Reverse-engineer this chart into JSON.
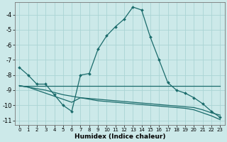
{
  "xlabel": "Humidex (Indice chaleur)",
  "xlim": [
    -0.5,
    23.5
  ],
  "ylim": [
    -11.3,
    -3.2
  ],
  "xticks": [
    0,
    1,
    2,
    3,
    4,
    5,
    6,
    7,
    8,
    9,
    10,
    11,
    12,
    13,
    14,
    15,
    16,
    17,
    18,
    19,
    20,
    21,
    22,
    23
  ],
  "yticks": [
    -11,
    -10,
    -9,
    -8,
    -7,
    -6,
    -5,
    -4
  ],
  "bg_color": "#cce9e9",
  "line_color": "#1a6b6b",
  "grid_color": "#aad4d4",
  "line1_x": [
    0,
    1,
    2,
    3,
    4,
    5,
    6,
    7,
    8,
    9,
    10,
    11,
    12,
    13,
    14,
    15,
    16,
    17,
    18,
    19,
    20,
    21,
    22,
    23
  ],
  "line1_y": [
    -7.5,
    -8.0,
    -8.6,
    -8.6,
    -9.3,
    -10.0,
    -10.4,
    -8.0,
    -7.9,
    -6.3,
    -5.4,
    -4.8,
    -4.3,
    -3.5,
    -3.7,
    -5.5,
    -7.0,
    -8.5,
    -9.0,
    -9.2,
    -9.5,
    -9.9,
    -10.4,
    -10.8
  ],
  "line2_x": [
    0,
    1,
    2,
    3,
    4,
    5,
    6,
    7,
    8,
    9,
    10,
    11,
    12,
    13,
    14,
    15,
    16,
    17,
    18,
    19,
    20,
    21,
    22,
    23
  ],
  "line2_y": [
    -8.7,
    -8.7,
    -8.7,
    -8.7,
    -8.7,
    -8.7,
    -8.7,
    -8.7,
    -8.7,
    -8.7,
    -8.7,
    -8.7,
    -8.7,
    -8.7,
    -8.7,
    -8.7,
    -8.7,
    -8.7,
    -8.7,
    -8.7,
    -8.7,
    -8.7,
    -8.7,
    -8.7
  ],
  "line3_x": [
    0,
    1,
    2,
    3,
    4,
    5,
    6,
    7,
    8,
    9,
    10,
    11,
    12,
    13,
    14,
    15,
    16,
    17,
    18,
    19,
    20,
    21,
    22,
    23
  ],
  "line3_y": [
    -8.7,
    -8.8,
    -8.9,
    -9.0,
    -9.15,
    -9.3,
    -9.4,
    -9.5,
    -9.55,
    -9.6,
    -9.65,
    -9.7,
    -9.75,
    -9.8,
    -9.85,
    -9.9,
    -9.95,
    -10.0,
    -10.05,
    -10.1,
    -10.15,
    -10.3,
    -10.5,
    -10.65
  ],
  "line4_x": [
    0,
    1,
    2,
    3,
    4,
    5,
    6,
    7,
    8,
    9,
    10,
    11,
    12,
    13,
    14,
    15,
    16,
    17,
    18,
    19,
    20,
    21,
    22,
    23
  ],
  "line4_y": [
    -8.7,
    -8.8,
    -9.0,
    -9.2,
    -9.4,
    -9.6,
    -9.8,
    -9.5,
    -9.6,
    -9.7,
    -9.75,
    -9.8,
    -9.85,
    -9.9,
    -9.95,
    -10.0,
    -10.05,
    -10.1,
    -10.15,
    -10.2,
    -10.3,
    -10.5,
    -10.7,
    -10.95
  ]
}
